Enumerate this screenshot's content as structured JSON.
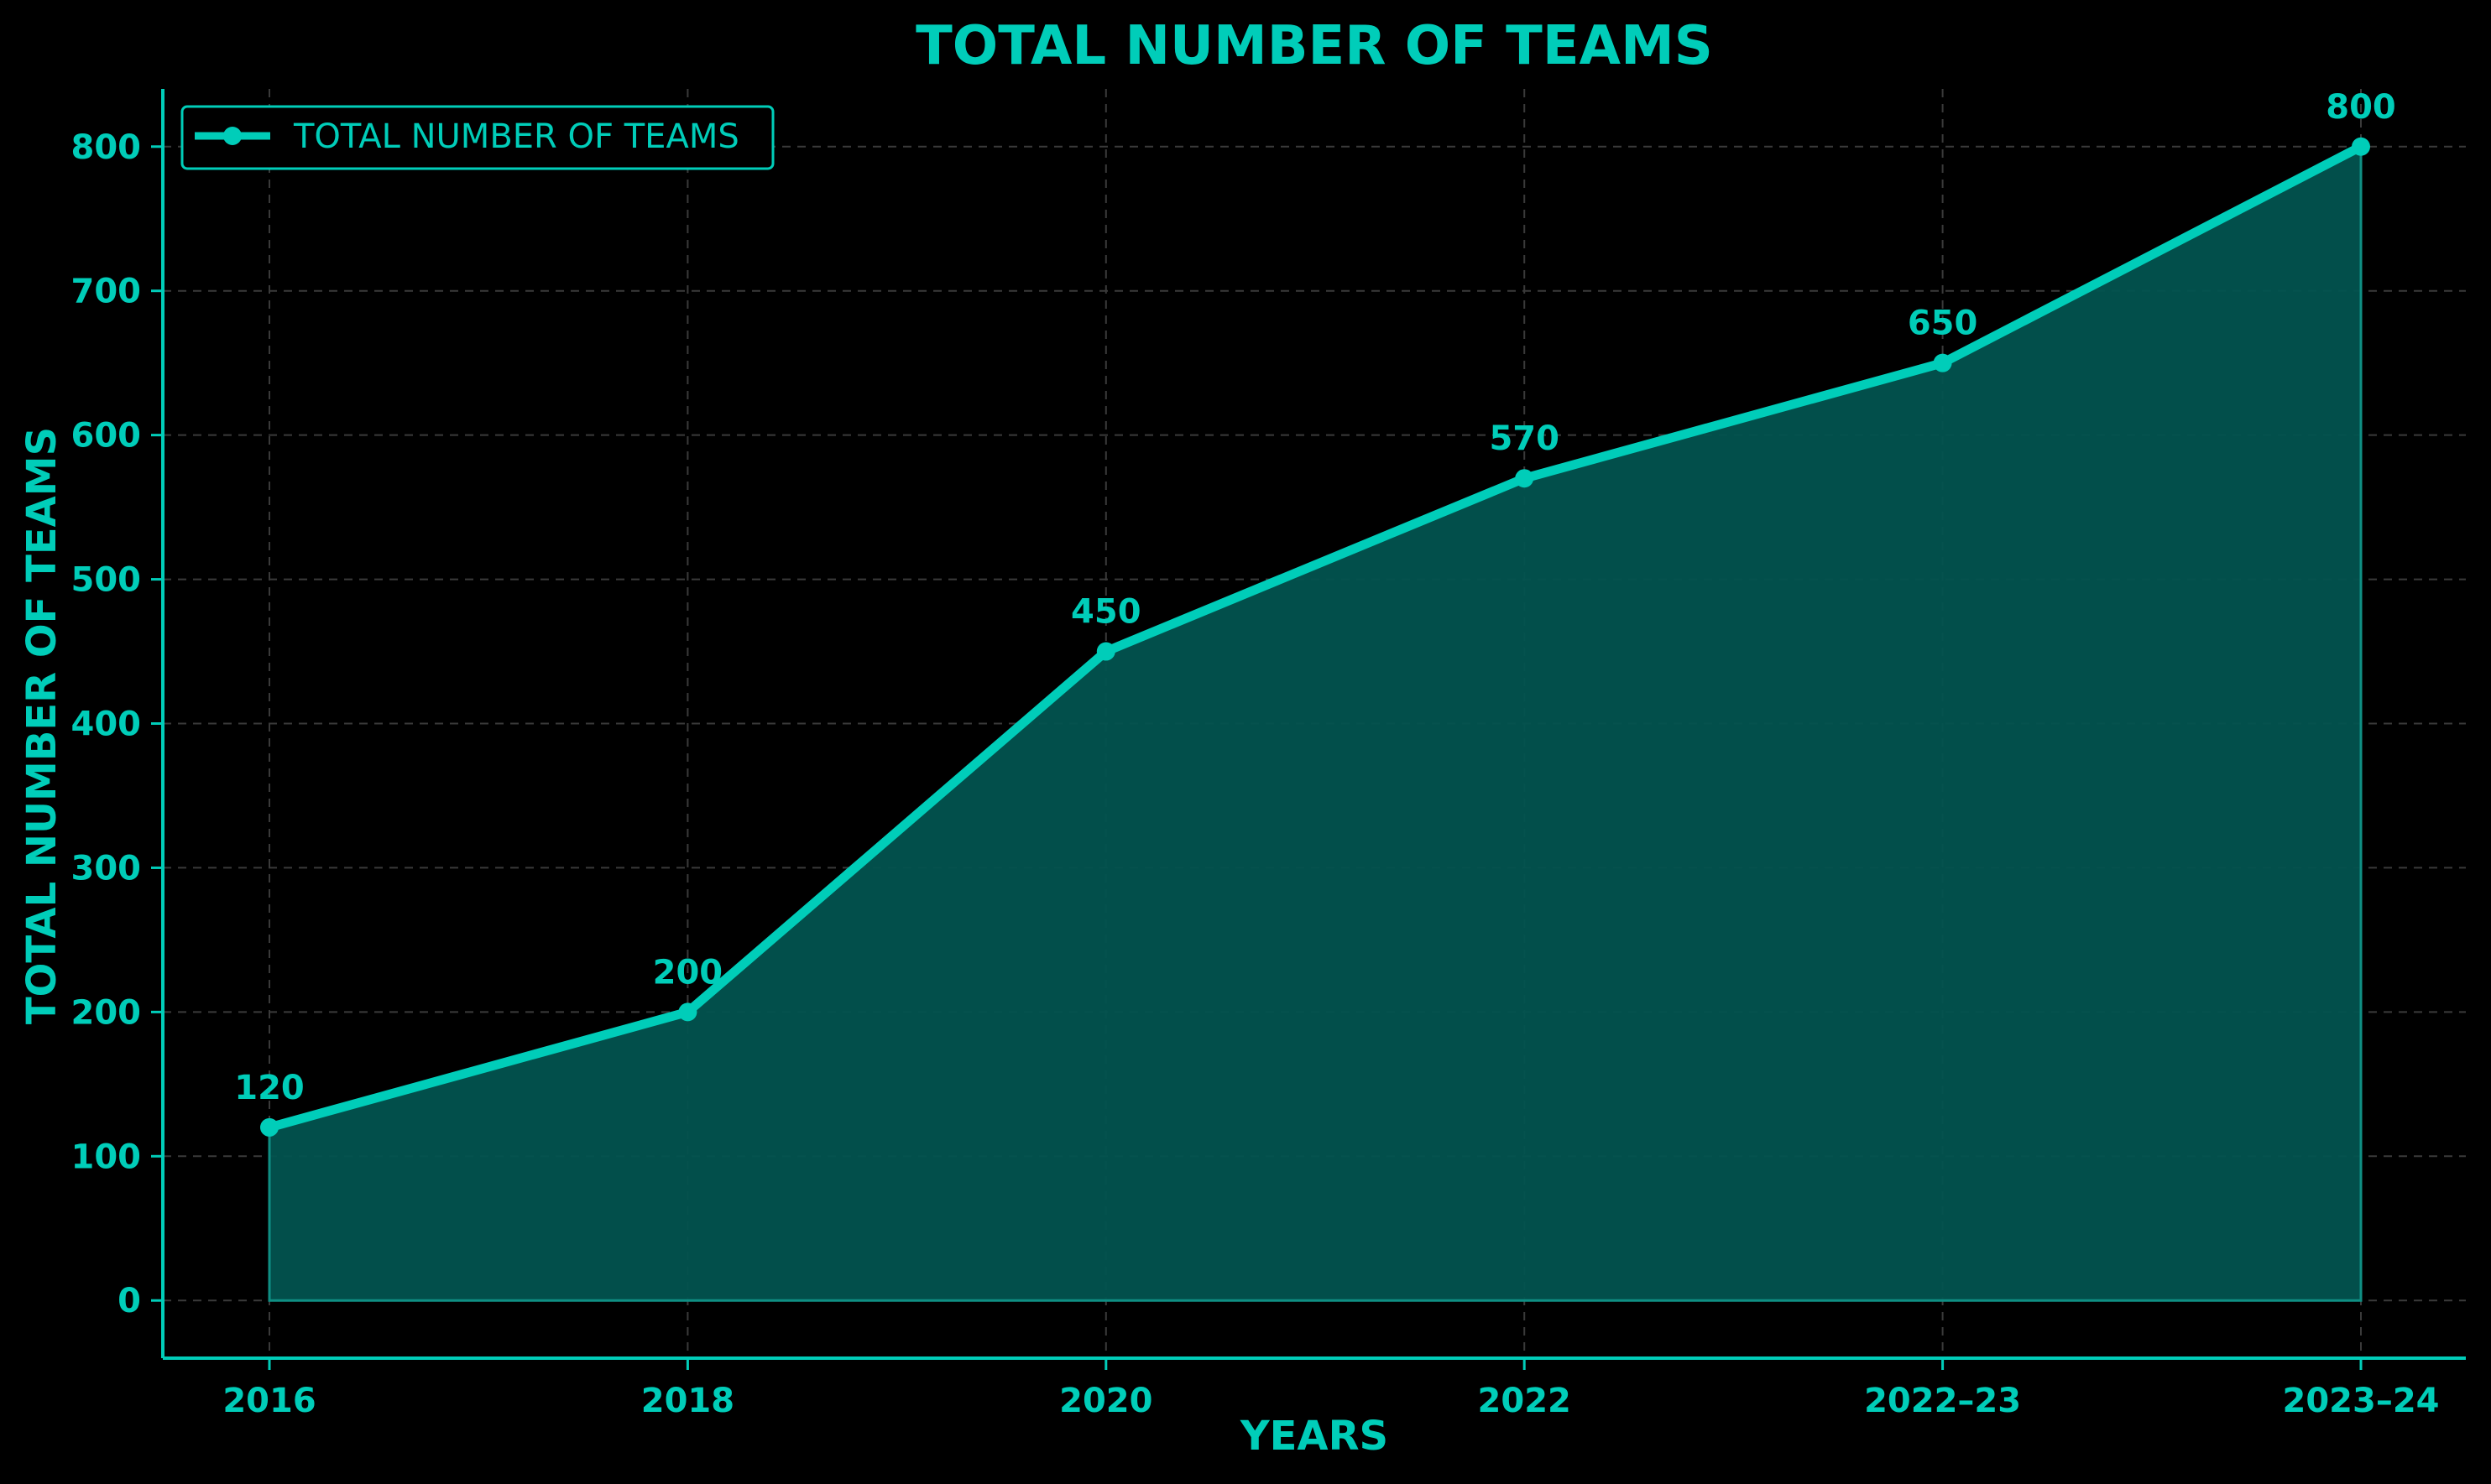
{
  "chart_data": {
    "type": "area",
    "title": "TOTAL NUMBER OF TEAMS",
    "xlabel": "YEARS",
    "ylabel": "TOTAL NUMBER OF TEAMS",
    "categories": [
      "2016",
      "2018",
      "2020",
      "2022",
      "2022–23",
      "2023–24"
    ],
    "series": [
      {
        "name": "TOTAL NUMBER OF TEAMS",
        "values": [
          120,
          200,
          450,
          570,
          650,
          800
        ]
      }
    ],
    "data_labels": [
      "120",
      "200",
      "450",
      "570",
      "650",
      "800"
    ],
    "yticks": [
      0,
      100,
      200,
      300,
      400,
      500,
      600,
      700,
      800
    ],
    "ylim": [
      -40,
      840
    ],
    "grid": true,
    "legend_position": "top-left",
    "colors": {
      "background": "#000000",
      "accent": "#00cdb9",
      "fill": "#02534f",
      "grid": "#3a3a3a"
    }
  }
}
